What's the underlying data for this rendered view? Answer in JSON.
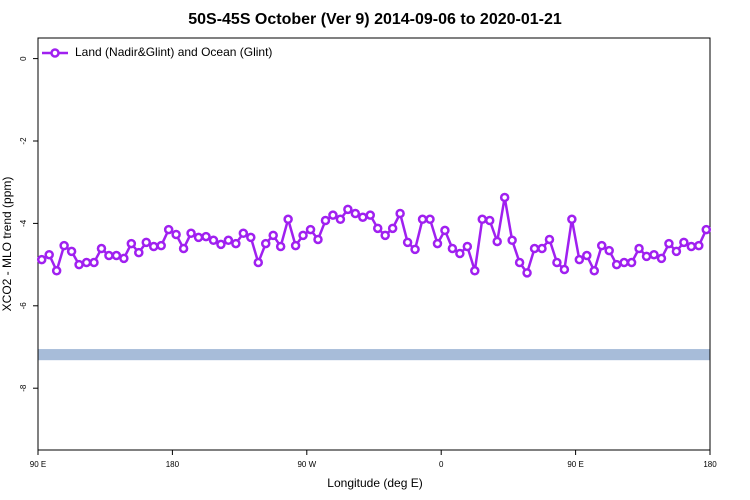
{
  "chart_data": {
    "type": "line",
    "title": "50S-45S October (Ver 9)   2014-09-06 to 2020-01-21",
    "x_label": "Longitude (deg E)",
    "y_label": "XCO2 - MLO trend (ppm)",
    "xlim": [
      90,
      540
    ],
    "xticks": [
      {
        "value": 90,
        "label": "90 E"
      },
      {
        "value": 180,
        "label": "180"
      },
      {
        "value": 270,
        "label": "90 W"
      },
      {
        "value": 360,
        "label": "0"
      },
      {
        "value": 450,
        "label": "90 E"
      },
      {
        "value": 540,
        "label": "180"
      }
    ],
    "ylim": [
      -9.5,
      0.5
    ],
    "yticks": [
      0,
      -2,
      -4,
      -6,
      -8
    ],
    "legend_position": "upper left",
    "band_ylim": [
      -7.32,
      -7.05
    ],
    "band_color": "#a7bcd9",
    "x": [
      92.5,
      97.5,
      102.5,
      107.5,
      112.5,
      117.5,
      122.5,
      127.5,
      132.5,
      137.5,
      142.5,
      147.5,
      152.5,
      157.5,
      162.5,
      167.5,
      172.5,
      177.5,
      182.5,
      187.5,
      192.5,
      197.5,
      202.5,
      207.5,
      212.5,
      217.5,
      222.5,
      227.5,
      232.5,
      237.5,
      242.5,
      247.5,
      252.5,
      257.5,
      262.5,
      267.5,
      272.5,
      277.5,
      282.5,
      287.5,
      292.5,
      297.5,
      302.5,
      307.5,
      312.5,
      317.5,
      322.5,
      327.5,
      332.5,
      337.5,
      342.5,
      347.5,
      352.5,
      357.5,
      362.5,
      367.5,
      372.5,
      377.5,
      382.5,
      387.5,
      392.5,
      397.5,
      402.5,
      407.5,
      412.5,
      417.5,
      422.5,
      427.5,
      432.5,
      437.5,
      442.5,
      447.5,
      452.5,
      457.5,
      462.5,
      467.5,
      472.5,
      477.5,
      482.5,
      487.5,
      492.5,
      497.5,
      502.5,
      507.5,
      512.5,
      517.5,
      522.5,
      527.5,
      532.5,
      537.5
    ],
    "series": [
      {
        "name": "Land (Nadir&Glint) and Ocean (Glint)",
        "color": "#a020f0",
        "values": [
          -4.88,
          -4.76,
          -5.15,
          -4.54,
          -4.68,
          -5.0,
          -4.95,
          -4.95,
          -4.61,
          -4.78,
          -4.78,
          -4.85,
          -4.49,
          -4.71,
          -4.46,
          -4.56,
          -4.54,
          -4.15,
          -4.27,
          -4.61,
          -4.24,
          -4.34,
          -4.32,
          -4.41,
          -4.51,
          -4.41,
          -4.49,
          -4.24,
          -4.34,
          -4.95,
          -4.49,
          -4.29,
          -4.56,
          -3.9,
          -4.54,
          -4.29,
          -4.15,
          -4.39,
          -3.93,
          -3.8,
          -3.9,
          -3.66,
          -3.76,
          -3.85,
          -3.8,
          -4.12,
          -4.29,
          -4.12,
          -3.76,
          -4.46,
          -4.63,
          -3.9,
          -3.9,
          -4.49,
          -4.17,
          -4.61,
          -4.73,
          -4.56,
          -5.15,
          -3.9,
          -3.93,
          -4.44,
          -3.37,
          -4.41,
          -4.95,
          -5.2,
          -4.61,
          -4.61,
          -4.39,
          -4.95,
          -5.12,
          -3.9,
          -4.88,
          -4.78,
          -5.15,
          -4.54,
          -4.66,
          -5.0,
          -4.95,
          -4.95,
          -4.61,
          -4.8,
          -4.76,
          -4.85,
          -4.49,
          -4.68,
          -4.46,
          -4.56,
          -4.54,
          -4.15
        ]
      }
    ]
  }
}
